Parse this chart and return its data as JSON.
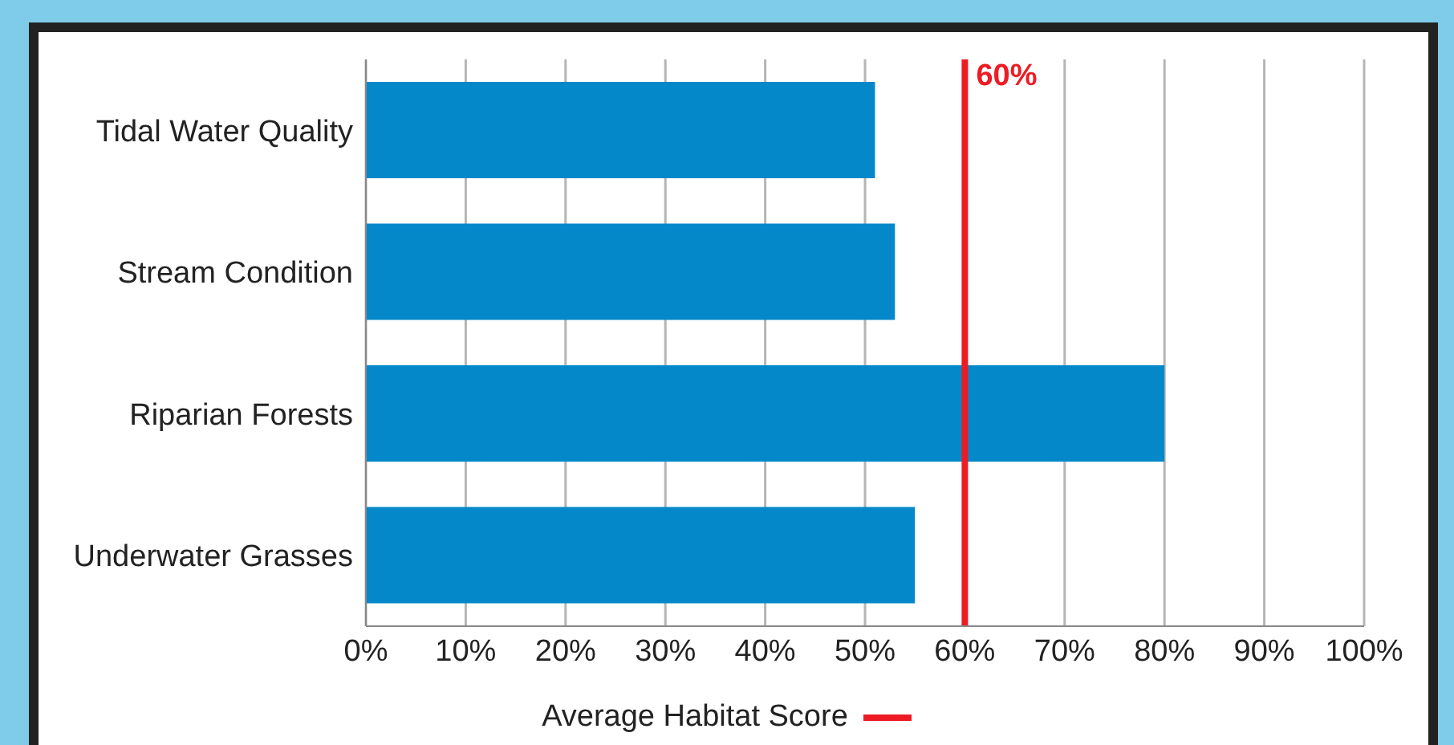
{
  "chart_data": {
    "type": "bar",
    "orientation": "horizontal",
    "categories": [
      "Tidal Water Quality",
      "Stream Condition",
      "Riparian Forests",
      "Underwater Grasses"
    ],
    "series": [
      {
        "color": "#0588c9",
        "values": [
          51,
          53,
          80,
          55
        ]
      }
    ],
    "xlim": [
      0,
      100
    ],
    "xticks": [
      {
        "value": 0,
        "label": "0%"
      },
      {
        "value": 10,
        "label": "10%"
      },
      {
        "value": 20,
        "label": "20%"
      },
      {
        "value": 30,
        "label": "30%"
      },
      {
        "value": 40,
        "label": "40%"
      },
      {
        "value": 50,
        "label": "50%"
      },
      {
        "value": 60,
        "label": "60%"
      },
      {
        "value": 70,
        "label": "70%"
      },
      {
        "value": 80,
        "label": "80%"
      },
      {
        "value": 90,
        "label": "90%"
      },
      {
        "value": 100,
        "label": "100%"
      }
    ],
    "grid": "x",
    "ref_lines": [
      {
        "axis": "x",
        "value": 60,
        "label": "Average Habitat Score",
        "color": "#ed1c24"
      }
    ],
    "annotations": [
      {
        "text": "60%",
        "x": 60
      }
    ]
  }
}
